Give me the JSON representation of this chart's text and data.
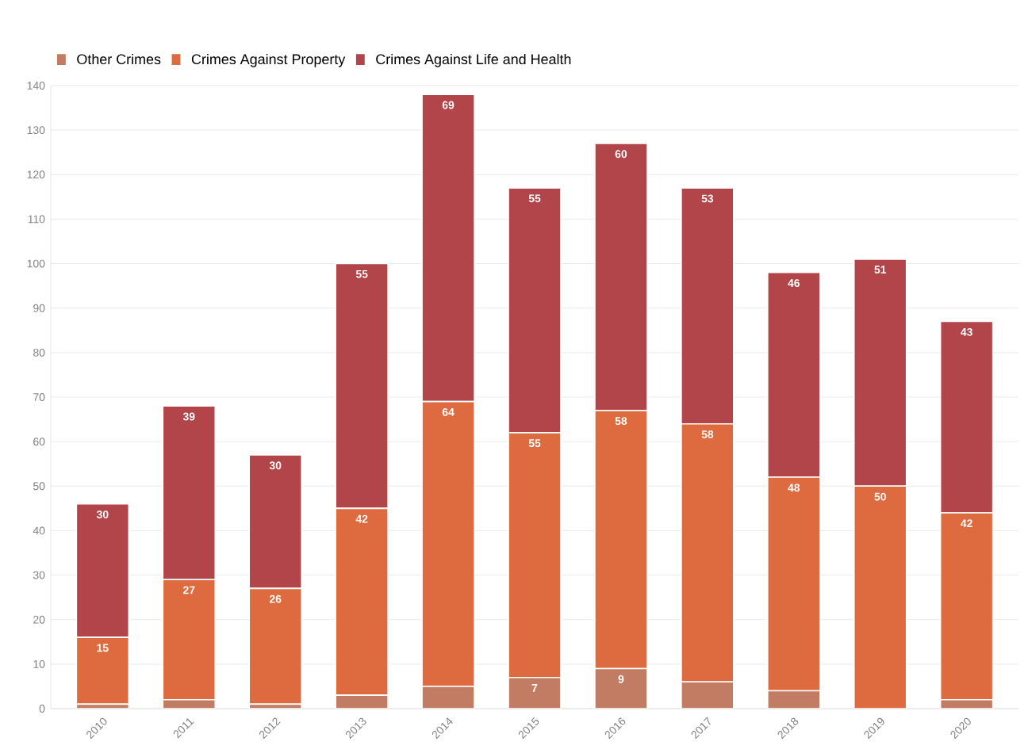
{
  "chart_data": {
    "type": "bar",
    "stacked": true,
    "categories": [
      "2010",
      "2011",
      "2012",
      "2013",
      "2014",
      "2015",
      "2016",
      "2017",
      "2018",
      "2019",
      "2020"
    ],
    "series": [
      {
        "name": "Other Crimes",
        "color": "#c17c63",
        "values": [
          1,
          2,
          1,
          3,
          5,
          7,
          9,
          6,
          4,
          0,
          2
        ],
        "value_labels": [
          null,
          null,
          null,
          null,
          null,
          "7",
          "9",
          null,
          null,
          null,
          null
        ]
      },
      {
        "name": "Crimes Against Property",
        "color": "#dd6b3f",
        "values": [
          15,
          27,
          26,
          42,
          64,
          55,
          58,
          58,
          48,
          50,
          42
        ],
        "value_labels": [
          "15",
          "27",
          "26",
          "42",
          "64",
          "55",
          "58",
          "58",
          "48",
          "50",
          "42"
        ]
      },
      {
        "name": "Crimes Against Life and Health",
        "color": "#b2454a",
        "values": [
          30,
          39,
          30,
          55,
          69,
          55,
          60,
          53,
          46,
          51,
          43
        ],
        "value_labels": [
          "30",
          "39",
          "30",
          "55",
          "69",
          "55",
          "60",
          "53",
          "46",
          "51",
          "43"
        ]
      }
    ],
    "ylim": [
      0,
      140
    ],
    "yticks": [
      0,
      10,
      20,
      30,
      40,
      50,
      60,
      70,
      80,
      90,
      100,
      110,
      120,
      130,
      140
    ],
    "grid": "y",
    "legend": "top left"
  }
}
